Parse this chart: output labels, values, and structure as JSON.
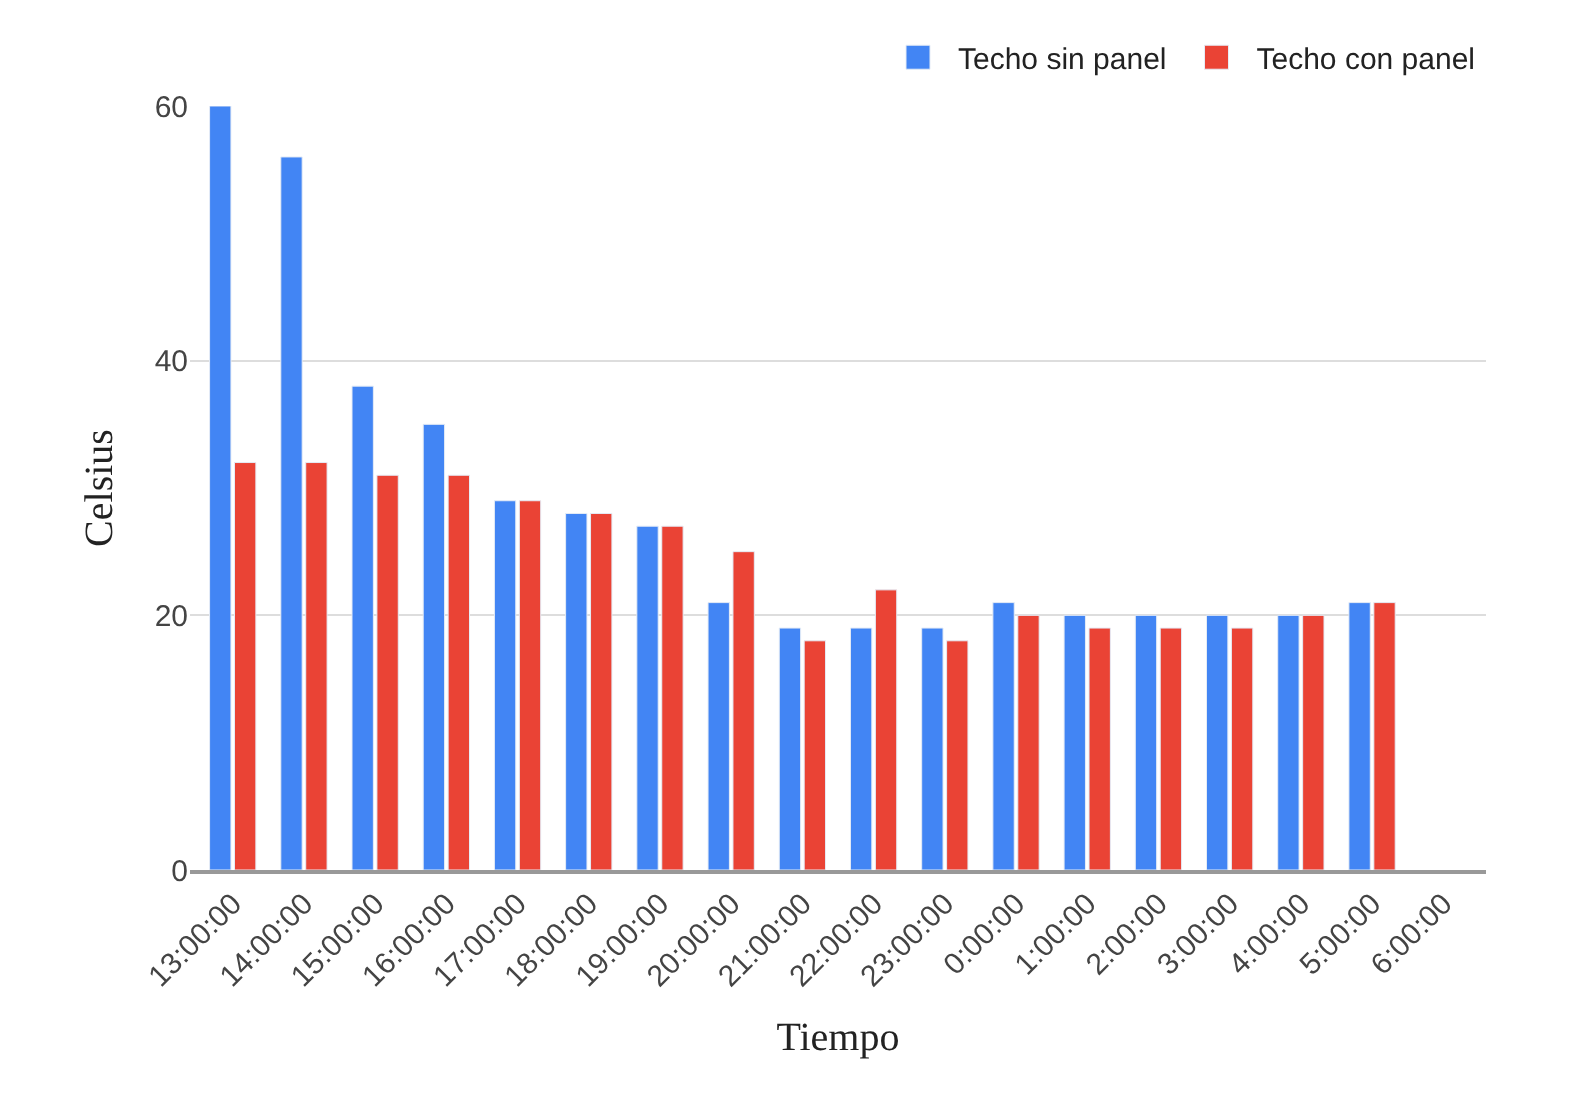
{
  "chart_data": {
    "type": "bar",
    "xlabel": "Tiempo",
    "ylabel": "Celsius",
    "categories": [
      "13:00:00",
      "14:00:00",
      "15:00:00",
      "16:00:00",
      "17:00:00",
      "18:00:00",
      "19:00:00",
      "20:00:00",
      "21:00:00",
      "22:00:00",
      "23:00:00",
      "0:00:00",
      "1:00:00",
      "2:00:00",
      "3:00:00",
      "4:00:00",
      "5:00:00",
      "6:00:00"
    ],
    "series": [
      {
        "name": "Techo sin panel",
        "color": "#4285f4",
        "values": [
          60,
          56,
          38,
          35,
          29,
          28,
          27,
          21,
          19,
          19,
          19,
          21,
          20,
          20,
          20,
          20,
          21,
          null
        ]
      },
      {
        "name": "Techo con panel",
        "color": "#ea4335",
        "values": [
          32,
          32,
          31,
          31,
          29,
          28,
          27,
          25,
          18,
          22,
          18,
          20,
          19,
          19,
          19,
          20,
          21,
          null
        ]
      }
    ],
    "ylim": [
      0,
      60
    ],
    "yticks": [
      0,
      20,
      40,
      60
    ],
    "grid": "y",
    "legend": "top right"
  }
}
